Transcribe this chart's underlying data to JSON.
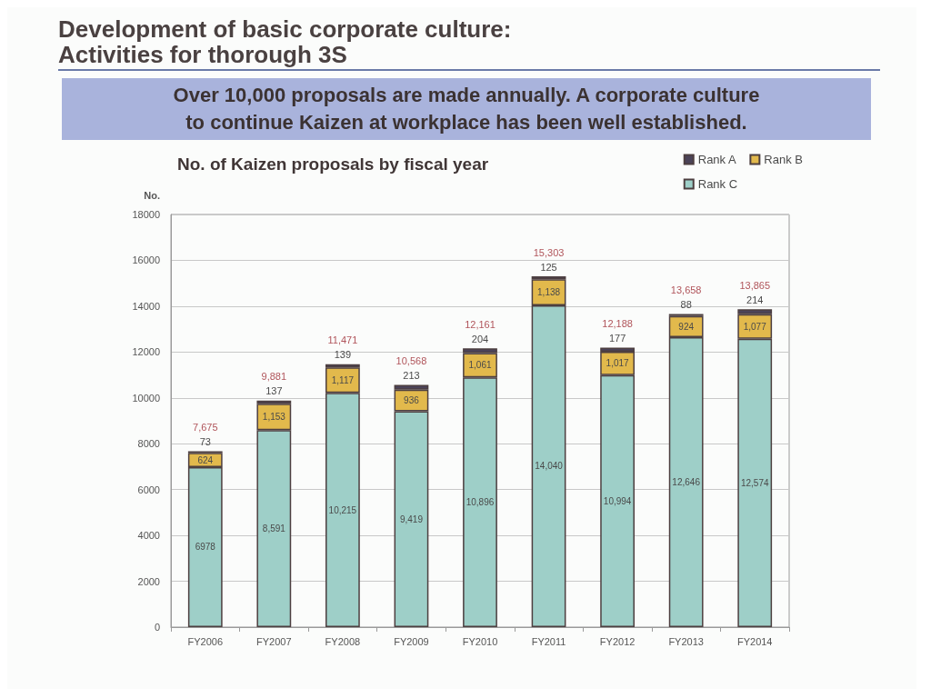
{
  "chart_data": {
    "type": "bar",
    "title": "Development of basic corporate culture:\nActivities for thorough 3S",
    "subtitle": "Over 10,000 proposals are made annually. A corporate culture\nto continue Kaizen at workplace has been well established.",
    "annotations": [
      "No. of Kaizen proposals by fiscal year"
    ],
    "ylabel": "No.",
    "categories": [
      "FY2006",
      "FY2007",
      "FY2008",
      "FY2009",
      "FY2010",
      "FY2011",
      "FY2012",
      "FY2013",
      "FY2014"
    ],
    "stacked": true,
    "series": [
      {
        "name": "Rank C",
        "color": "#9ecfc8",
        "values": [
          6978,
          8591,
          10215,
          9419,
          10896,
          14040,
          10994,
          12646,
          12574
        ],
        "value_labels": [
          "6978",
          "8,591",
          "10,215",
          "9,419",
          "10,896",
          "14,040",
          "10,994",
          "12,646",
          "12,574"
        ]
      },
      {
        "name": "Rank B",
        "color": "#e2b94c",
        "values": [
          624,
          1153,
          1117,
          936,
          1061,
          1138,
          1017,
          924,
          1077
        ],
        "value_labels": [
          "624",
          "1,153",
          "1,117",
          "936",
          "1,061",
          "1,138",
          "1,017",
          "924",
          "1,077"
        ]
      },
      {
        "name": "Rank A",
        "color": "#4b4358",
        "values": [
          73,
          137,
          139,
          213,
          204,
          125,
          177,
          88,
          214
        ],
        "value_labels": [
          "73",
          "137",
          "139",
          "213",
          "204",
          "125",
          "177",
          "88",
          "214"
        ]
      }
    ],
    "totals": [
      "7,675",
      "9,881",
      "11,471",
      "10,568",
      "12,161",
      "15,303",
      "12,188",
      "13,658",
      "13,865"
    ],
    "ylim": [
      0,
      18000
    ],
    "yticks": [
      0,
      2000,
      4000,
      6000,
      8000,
      10000,
      12000,
      14000,
      16000,
      18000
    ],
    "grid": "y",
    "legend": "top right"
  }
}
